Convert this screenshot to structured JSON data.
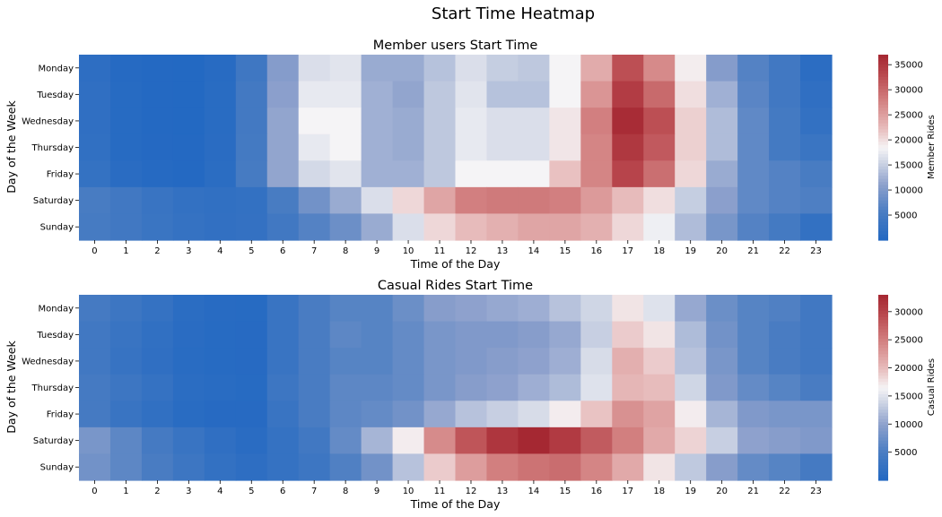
{
  "figure": {
    "title": "Start Time Heatmap"
  },
  "chart_data": [
    {
      "type": "heatmap",
      "title": "Member users Start Time",
      "xlabel": "Time of the Day",
      "ylabel": "Day of the Week",
      "x": [
        "0",
        "1",
        "2",
        "3",
        "4",
        "5",
        "6",
        "7",
        "8",
        "9",
        "10",
        "11",
        "12",
        "13",
        "14",
        "15",
        "16",
        "17",
        "18",
        "19",
        "20",
        "21",
        "22",
        "23"
      ],
      "y": [
        "Monday",
        "Tuesday",
        "Wednesday",
        "Thursday",
        "Friday",
        "Saturday",
        "Sunday"
      ],
      "colorbar": {
        "label": "Member Rides",
        "ticks": [
          5000,
          10000,
          15000,
          20000,
          25000,
          30000,
          35000
        ],
        "range": [
          0,
          37000
        ],
        "colormap": "vlag"
      },
      "values": [
        [
          1800,
          600,
          300,
          200,
          900,
          4300,
          10500,
          16500,
          17000,
          12000,
          12000,
          14000,
          16500,
          15000,
          14500,
          18500,
          24000,
          32500,
          27000,
          19000,
          10500,
          6500,
          4500,
          1500
        ],
        [
          2000,
          700,
          300,
          200,
          1000,
          4800,
          11000,
          17500,
          17500,
          12500,
          11500,
          14500,
          17000,
          14000,
          14000,
          18500,
          26000,
          34500,
          30000,
          20000,
          12500,
          7000,
          4500,
          2000
        ],
        [
          2000,
          700,
          350,
          200,
          1000,
          4800,
          11500,
          18500,
          18500,
          12500,
          12000,
          14500,
          17500,
          16500,
          16500,
          19500,
          28000,
          36500,
          32500,
          21000,
          13500,
          7500,
          5000,
          2500
        ],
        [
          2200,
          800,
          400,
          250,
          1100,
          5000,
          11500,
          17500,
          18500,
          12500,
          12000,
          14500,
          17500,
          16500,
          16500,
          19500,
          27500,
          35000,
          31500,
          21000,
          13500,
          7500,
          5000,
          3500
        ],
        [
          2700,
          1200,
          600,
          300,
          1300,
          5300,
          11500,
          16000,
          17000,
          12500,
          12500,
          14500,
          18500,
          18500,
          18500,
          22000,
          27500,
          33500,
          29500,
          20500,
          12000,
          7500,
          6500,
          5500
        ],
        [
          5500,
          4500,
          3300,
          2500,
          2200,
          2500,
          5500,
          9000,
          12000,
          16500,
          20500,
          24500,
          28000,
          28500,
          28500,
          28000,
          25500,
          22500,
          20000,
          15000,
          11000,
          7500,
          6500,
          6000
        ],
        [
          5300,
          4500,
          3500,
          2800,
          2300,
          2600,
          4500,
          6500,
          8500,
          12000,
          16500,
          20500,
          22500,
          23500,
          24500,
          24500,
          23500,
          20500,
          18000,
          13500,
          9500,
          6500,
          5000,
          2500
        ]
      ]
    },
    {
      "type": "heatmap",
      "title": "Casual Rides Start Time",
      "xlabel": "Time of the Day",
      "ylabel": "Day of the Week",
      "x": [
        "0",
        "1",
        "2",
        "3",
        "4",
        "5",
        "6",
        "7",
        "8",
        "9",
        "10",
        "11",
        "12",
        "13",
        "14",
        "15",
        "16",
        "17",
        "18",
        "19",
        "20",
        "21",
        "22",
        "23"
      ],
      "y": [
        "Monday",
        "Tuesday",
        "Wednesday",
        "Thursday",
        "Friday",
        "Saturday",
        "Sunday"
      ],
      "colorbar": {
        "label": "Casual Rides",
        "ticks": [
          5000,
          10000,
          15000,
          20000,
          25000,
          30000
        ],
        "range": [
          0,
          33000
        ],
        "colormap": "vlag"
      },
      "values": [
        [
          4500,
          3500,
          2500,
          1200,
          800,
          700,
          3000,
          5000,
          6000,
          6000,
          7500,
          9500,
          10000,
          10500,
          11000,
          12500,
          14000,
          17500,
          15000,
          10500,
          7500,
          6000,
          5500,
          4000
        ],
        [
          4000,
          3000,
          2000,
          1000,
          700,
          600,
          3000,
          5000,
          6500,
          6000,
          7000,
          8500,
          9000,
          9000,
          9500,
          10500,
          13500,
          19000,
          17500,
          12000,
          8000,
          6000,
          5000,
          4000
        ],
        [
          4000,
          2800,
          1800,
          900,
          700,
          600,
          3000,
          5000,
          6000,
          6000,
          7000,
          8500,
          9000,
          9500,
          10000,
          11000,
          14500,
          21000,
          19000,
          12500,
          8500,
          6000,
          5000,
          4000
        ],
        [
          4500,
          3500,
          2500,
          1200,
          900,
          700,
          3500,
          5000,
          6500,
          6500,
          7000,
          8500,
          9500,
          10000,
          11000,
          12000,
          15000,
          20500,
          20000,
          14000,
          9000,
          7000,
          6000,
          5000
        ],
        [
          4500,
          3000,
          2000,
          900,
          600,
          600,
          3000,
          5000,
          6500,
          7000,
          8000,
          10500,
          12500,
          13500,
          14500,
          17000,
          19500,
          23500,
          22000,
          17000,
          11500,
          9000,
          8500,
          8500
        ],
        [
          8500,
          6500,
          4500,
          3000,
          1800,
          1000,
          2500,
          4000,
          7000,
          11500,
          17000,
          24000,
          28500,
          31500,
          33000,
          31000,
          28000,
          25000,
          21500,
          18500,
          13500,
          10000,
          9500,
          9000
        ],
        [
          8000,
          6500,
          5000,
          3500,
          2200,
          1500,
          2500,
          3500,
          5500,
          8000,
          12500,
          19000,
          22500,
          25000,
          26000,
          26500,
          24500,
          21500,
          17500,
          13000,
          9500,
          7000,
          6000,
          4500
        ]
      ]
    }
  ]
}
